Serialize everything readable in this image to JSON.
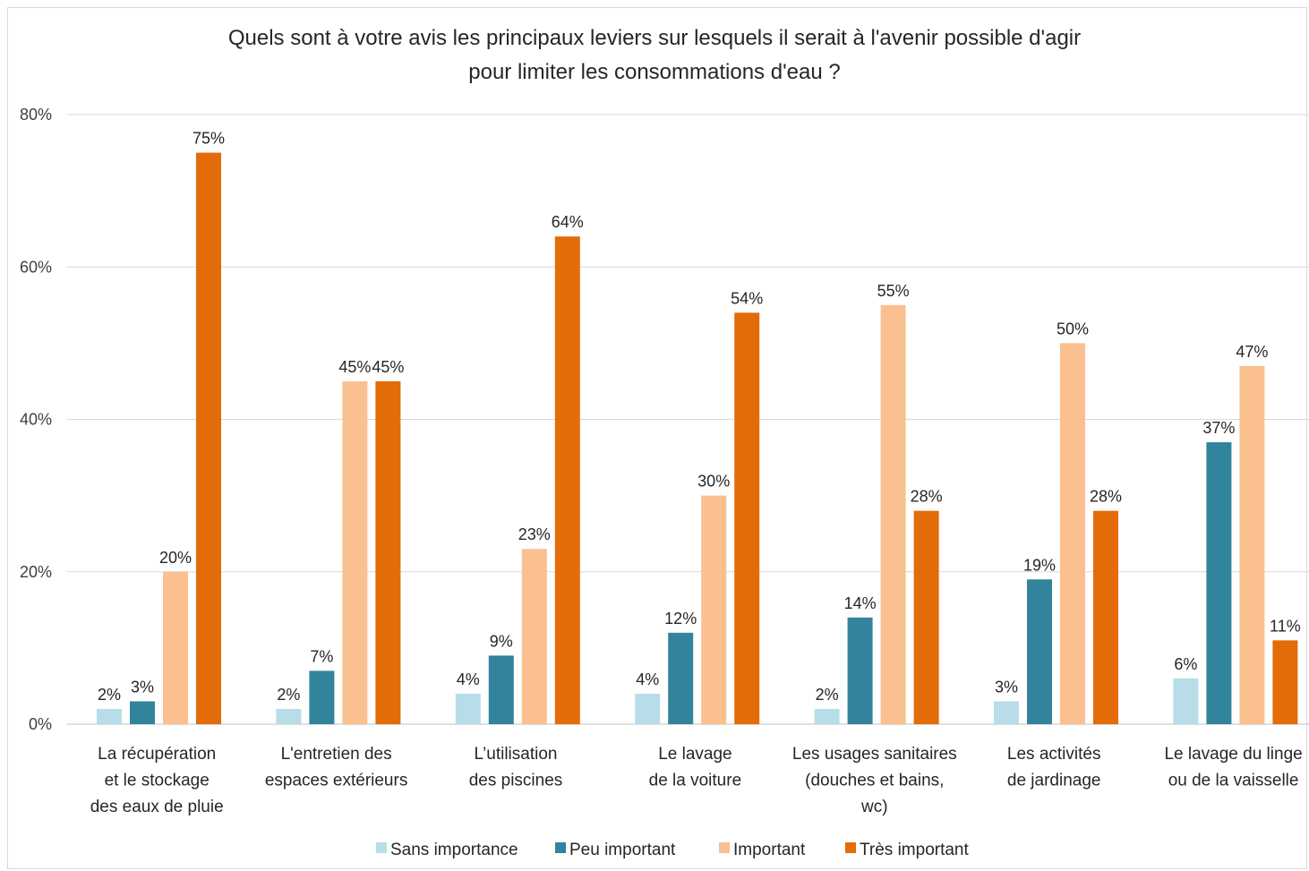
{
  "chart_data": {
    "type": "bar",
    "title": "Quels sont à votre avis les principaux leviers sur lesquels il serait à l'avenir possible d'agir\npour limiter les consommations d'eau ?",
    "xlabel": "",
    "ylabel": "",
    "ylim": [
      0,
      80
    ],
    "yticks": [
      0,
      20,
      40,
      60,
      80
    ],
    "ytick_labels": [
      "0%",
      "20%",
      "40%",
      "60%",
      "80%"
    ],
    "grid": true,
    "legend_position": "bottom",
    "categories": [
      [
        "La récupération",
        "et le stockage",
        "des eaux de pluie"
      ],
      [
        "L'entretien des",
        "espaces extérieurs"
      ],
      [
        "L’utilisation",
        "des piscines"
      ],
      [
        "Le lavage",
        "de la voiture"
      ],
      [
        "Les usages sanitaires",
        "(douches et bains,",
        "wc)"
      ],
      [
        "Les activités",
        "de jardinage"
      ],
      [
        "Le lavage du linge",
        "ou de la vaisselle"
      ]
    ],
    "series": [
      {
        "name": "Sans importance",
        "color": "#b7dde8",
        "values": [
          2,
          2,
          4,
          4,
          2,
          3,
          6
        ],
        "labels": [
          "2%",
          "2%",
          "4%",
          "4%",
          "2%",
          "3%",
          "6%"
        ]
      },
      {
        "name": "Peu important",
        "color": "#31849b",
        "values": [
          3,
          7,
          9,
          12,
          14,
          19,
          37
        ],
        "labels": [
          "3%",
          "7%",
          "9%",
          "12%",
          "14%",
          "19%",
          "37%"
        ]
      },
      {
        "name": "Important",
        "color": "#fac090",
        "values": [
          20,
          45,
          23,
          30,
          55,
          50,
          47
        ],
        "labels": [
          "20%",
          "45%",
          "23%",
          "30%",
          "55%",
          "50%",
          "47%"
        ]
      },
      {
        "name": "Très important",
        "color": "#e36c09",
        "values": [
          75,
          45,
          64,
          54,
          28,
          28,
          11
        ],
        "labels": [
          "75%",
          "45%",
          "64%",
          "54%",
          "28%",
          "28%",
          "11%"
        ]
      }
    ]
  }
}
